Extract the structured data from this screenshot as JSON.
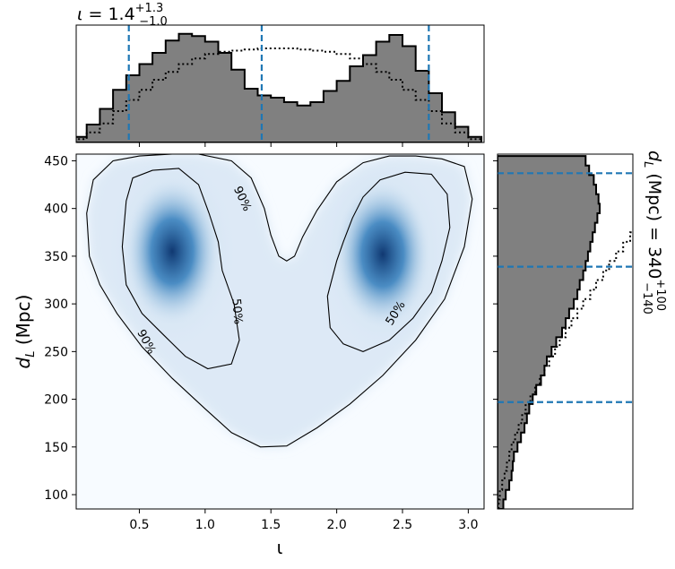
{
  "chart_data": [
    {
      "type": "heatmap",
      "panel": "joint",
      "xlabel": "ι",
      "ylabel": "d_L (Mpc)",
      "xlim": [
        0.02,
        3.12
      ],
      "ylim": [
        85,
        457
      ],
      "xticks": [
        0.5,
        1.0,
        1.5,
        2.0,
        2.5,
        3.0
      ],
      "xtick_labels": [
        "0.5",
        "1.0",
        "1.5",
        "2.0",
        "2.5",
        "3.0"
      ],
      "yticks": [
        100,
        150,
        200,
        250,
        300,
        350,
        400,
        450
      ],
      "ytick_labels": [
        "100",
        "150",
        "200",
        "250",
        "300",
        "350",
        "400",
        "450"
      ],
      "colormap": "Blues",
      "density_modes": [
        {
          "iota": 0.75,
          "dL": 355
        },
        {
          "iota": 2.35,
          "dL": 352
        }
      ],
      "contours": [
        {
          "level": "90%",
          "points": [
            [
              0.1,
              395
            ],
            [
              0.12,
              350
            ],
            [
              0.2,
              320
            ],
            [
              0.33,
              290
            ],
            [
              0.52,
              255
            ],
            [
              0.75,
              222
            ],
            [
              1.0,
              190
            ],
            [
              1.2,
              165
            ],
            [
              1.42,
              150
            ],
            [
              1.62,
              151
            ],
            [
              1.85,
              170
            ],
            [
              2.1,
              195
            ],
            [
              2.35,
              225
            ],
            [
              2.6,
              262
            ],
            [
              2.82,
              305
            ],
            [
              2.97,
              360
            ],
            [
              3.03,
              410
            ],
            [
              2.97,
              444
            ],
            [
              2.8,
              452
            ],
            [
              2.6,
              455
            ],
            [
              2.4,
              455
            ],
            [
              2.2,
              448
            ],
            [
              2.0,
              428
            ],
            [
              1.85,
              398
            ],
            [
              1.74,
              370
            ],
            [
              1.68,
              350
            ],
            [
              1.62,
              345
            ],
            [
              1.56,
              350
            ],
            [
              1.5,
              372
            ],
            [
              1.45,
              400
            ],
            [
              1.35,
              432
            ],
            [
              1.2,
              450
            ],
            [
              0.95,
              457
            ],
            [
              0.75,
              457
            ],
            [
              0.5,
              455
            ],
            [
              0.3,
              450
            ],
            [
              0.15,
              430
            ],
            [
              0.1,
              395
            ]
          ]
        },
        {
          "level": "50%",
          "points": [
            [
              0.4,
              408
            ],
            [
              0.37,
              360
            ],
            [
              0.4,
              320
            ],
            [
              0.52,
              290
            ],
            [
              0.68,
              268
            ],
            [
              0.85,
              245
            ],
            [
              1.02,
              232
            ],
            [
              1.2,
              237
            ],
            [
              1.26,
              262
            ],
            [
              1.22,
              300
            ],
            [
              1.13,
              335
            ],
            [
              1.1,
              365
            ],
            [
              1.03,
              395
            ],
            [
              0.95,
              425
            ],
            [
              0.8,
              442
            ],
            [
              0.6,
              440
            ],
            [
              0.45,
              432
            ],
            [
              0.4,
              408
            ]
          ]
        },
        {
          "level": "50%",
          "points": [
            [
              1.93,
              308
            ],
            [
              1.95,
              275
            ],
            [
              2.05,
              258
            ],
            [
              2.2,
              250
            ],
            [
              2.4,
              262
            ],
            [
              2.58,
              285
            ],
            [
              2.72,
              312
            ],
            [
              2.8,
              345
            ],
            [
              2.86,
              380
            ],
            [
              2.84,
              415
            ],
            [
              2.72,
              436
            ],
            [
              2.52,
              438
            ],
            [
              2.33,
              430
            ],
            [
              2.2,
              412
            ],
            [
              2.12,
              390
            ],
            [
              2.05,
              365
            ],
            [
              2.0,
              345
            ],
            [
              1.93,
              308
            ]
          ]
        }
      ],
      "contour_labels": [
        {
          "text": "90%",
          "iota": 1.28,
          "dL": 410,
          "rotate": 65
        },
        {
          "text": "90%",
          "iota": 0.55,
          "dL": 260,
          "rotate": 62
        },
        {
          "text": "50%",
          "iota": 1.24,
          "dL": 292,
          "rotate": 85
        },
        {
          "text": "50%",
          "iota": 2.45,
          "dL": 290,
          "rotate": -58
        }
      ]
    },
    {
      "type": "histogram",
      "panel": "marginal-top",
      "title_var": "ι",
      "title_value": "1.4",
      "title_plus": "+1.3",
      "title_minus": "−1.0",
      "xlim": [
        0.02,
        3.12
      ],
      "bin_width": 0.1,
      "bin_centers": [
        0.05,
        0.15,
        0.25,
        0.35,
        0.45,
        0.55,
        0.65,
        0.75,
        0.85,
        0.95,
        1.05,
        1.15,
        1.25,
        1.35,
        1.45,
        1.55,
        1.65,
        1.75,
        1.85,
        1.95,
        2.05,
        2.15,
        2.25,
        2.35,
        2.45,
        2.55,
        2.65,
        2.75,
        2.85,
        2.95,
        3.05
      ],
      "posterior": [
        0.05,
        0.16,
        0.3,
        0.47,
        0.6,
        0.7,
        0.8,
        0.91,
        0.97,
        0.95,
        0.9,
        0.8,
        0.65,
        0.48,
        0.42,
        0.4,
        0.36,
        0.33,
        0.36,
        0.46,
        0.55,
        0.68,
        0.78,
        0.9,
        0.96,
        0.86,
        0.64,
        0.44,
        0.27,
        0.14,
        0.05
      ],
      "prior": [
        0.03,
        0.09,
        0.17,
        0.28,
        0.38,
        0.47,
        0.56,
        0.63,
        0.7,
        0.75,
        0.79,
        0.81,
        0.82,
        0.83,
        0.84,
        0.84,
        0.84,
        0.83,
        0.82,
        0.81,
        0.79,
        0.75,
        0.7,
        0.63,
        0.56,
        0.47,
        0.38,
        0.28,
        0.17,
        0.09,
        0.03
      ],
      "quantile_lines": [
        0.42,
        1.43,
        2.7
      ]
    },
    {
      "type": "histogram",
      "panel": "marginal-right",
      "orientation": "horizontal",
      "title_var": "d_L (Mpc)",
      "title_value": "340",
      "title_plus": "+100",
      "title_minus": "−140",
      "ylim": [
        85,
        457
      ],
      "bin_width": 10,
      "bin_centers": [
        90,
        100,
        110,
        120,
        130,
        140,
        150,
        160,
        170,
        180,
        190,
        200,
        210,
        220,
        230,
        240,
        250,
        260,
        270,
        280,
        290,
        300,
        310,
        320,
        330,
        340,
        350,
        360,
        370,
        380,
        390,
        400,
        410,
        420,
        430,
        440,
        450
      ],
      "posterior": [
        0.05,
        0.07,
        0.1,
        0.12,
        0.13,
        0.14,
        0.17,
        0.2,
        0.23,
        0.25,
        0.27,
        0.3,
        0.33,
        0.37,
        0.4,
        0.42,
        0.46,
        0.5,
        0.55,
        0.58,
        0.61,
        0.65,
        0.68,
        0.7,
        0.73,
        0.75,
        0.77,
        0.79,
        0.81,
        0.83,
        0.85,
        0.87,
        0.86,
        0.84,
        0.82,
        0.78,
        0.75
      ],
      "prior": [
        0.01,
        0.02,
        0.04,
        0.06,
        0.08,
        0.1,
        0.12,
        0.15,
        0.18,
        0.21,
        0.24,
        0.28,
        0.32,
        0.36,
        0.4,
        0.44,
        0.49,
        0.53,
        0.58,
        0.63,
        0.68,
        0.73,
        0.79,
        0.84,
        0.9,
        0.95,
        1.01,
        1.07,
        1.13,
        1.19,
        1.25,
        1.31,
        1.37,
        1.43,
        1.49,
        1.55,
        1.61
      ],
      "quantile_lines": [
        197,
        339,
        437
      ]
    }
  ]
}
